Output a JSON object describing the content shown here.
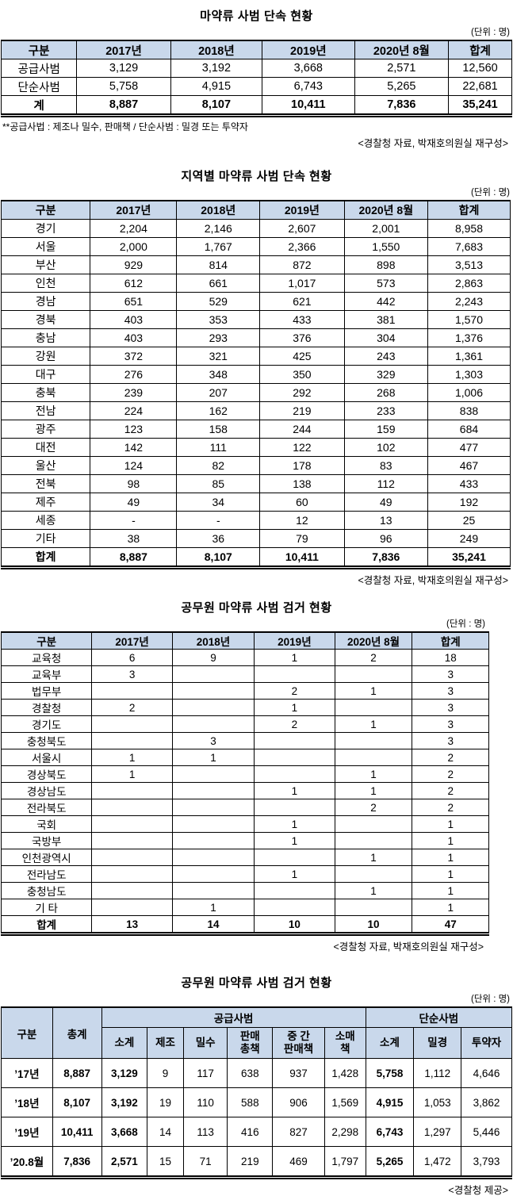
{
  "table1": {
    "title": "마약류 사범 단속 현황",
    "unit": "(단위 : 명)",
    "headers": [
      "구분",
      "2017년",
      "2018년",
      "2019년",
      "2020년  8월",
      "합계"
    ],
    "rows": [
      {
        "label": "공급사범",
        "values": [
          "3,129",
          "3,192",
          "3,668",
          "2,571",
          "12,560"
        ]
      },
      {
        "label": "단순사범",
        "values": [
          "5,758",
          "4,915",
          "6,743",
          "5,265",
          "22,681"
        ]
      }
    ],
    "total": {
      "label": "계",
      "values": [
        "8,887",
        "8,107",
        "10,411",
        "7,836",
        "35,241"
      ]
    },
    "footnote": "**공급사법 : 제조나 밀수, 판매책 / 단순사범 : 밀경 또는 투약자",
    "source": "<경찰청 자료, 박재호의원실 재구성>"
  },
  "table2": {
    "title": "지역별 마약류 사범 단속 현황",
    "unit": "(단위 : 명)",
    "headers": [
      "구분",
      "2017년",
      "2018년",
      "2019년",
      "2020년  8월",
      "합계"
    ],
    "rows": [
      {
        "label": "경기",
        "values": [
          "2,204",
          "2,146",
          "2,607",
          "2,001",
          "8,958"
        ]
      },
      {
        "label": "서울",
        "values": [
          "2,000",
          "1,767",
          "2,366",
          "1,550",
          "7,683"
        ]
      },
      {
        "label": "부산",
        "values": [
          "929",
          "814",
          "872",
          "898",
          "3,513"
        ]
      },
      {
        "label": "인천",
        "values": [
          "612",
          "661",
          "1,017",
          "573",
          "2,863"
        ]
      },
      {
        "label": "경남",
        "values": [
          "651",
          "529",
          "621",
          "442",
          "2,243"
        ]
      },
      {
        "label": "경북",
        "values": [
          "403",
          "353",
          "433",
          "381",
          "1,570"
        ]
      },
      {
        "label": "충남",
        "values": [
          "403",
          "293",
          "376",
          "304",
          "1,376"
        ]
      },
      {
        "label": "강원",
        "values": [
          "372",
          "321",
          "425",
          "243",
          "1,361"
        ]
      },
      {
        "label": "대구",
        "values": [
          "276",
          "348",
          "350",
          "329",
          "1,303"
        ]
      },
      {
        "label": "충북",
        "values": [
          "239",
          "207",
          "292",
          "268",
          "1,006"
        ]
      },
      {
        "label": "전남",
        "values": [
          "224",
          "162",
          "219",
          "233",
          "838"
        ]
      },
      {
        "label": "광주",
        "values": [
          "123",
          "158",
          "244",
          "159",
          "684"
        ]
      },
      {
        "label": "대전",
        "values": [
          "142",
          "111",
          "122",
          "102",
          "477"
        ]
      },
      {
        "label": "울산",
        "values": [
          "124",
          "82",
          "178",
          "83",
          "467"
        ]
      },
      {
        "label": "전북",
        "values": [
          "98",
          "85",
          "138",
          "112",
          "433"
        ]
      },
      {
        "label": "제주",
        "values": [
          "49",
          "34",
          "60",
          "49",
          "192"
        ]
      },
      {
        "label": "세종",
        "values": [
          "-",
          "-",
          "12",
          "13",
          "25"
        ]
      },
      {
        "label": "기타",
        "values": [
          "38",
          "36",
          "79",
          "96",
          "249"
        ]
      }
    ],
    "total": {
      "label": "합계",
      "values": [
        "8,887",
        "8,107",
        "10,411",
        "7,836",
        "35,241"
      ]
    },
    "source": "<경찰청 자료, 박재호의원실 재구성>"
  },
  "table3": {
    "title": "공무원 마약류 사범 검거 현황",
    "unit": "(단위 : 명)",
    "headers": [
      "구분",
      "2017년",
      "2018년",
      "2019년",
      "2020년  8월",
      "합계"
    ],
    "rows": [
      {
        "label": "교육청",
        "values": [
          "6",
          "9",
          "1",
          "2",
          "18"
        ]
      },
      {
        "label": "교육부",
        "values": [
          "3",
          "",
          "",
          "",
          "3"
        ]
      },
      {
        "label": "법무부",
        "values": [
          "",
          "",
          "2",
          "1",
          "3"
        ]
      },
      {
        "label": "경찰청",
        "values": [
          "2",
          "",
          "1",
          "",
          "3"
        ]
      },
      {
        "label": "경기도",
        "values": [
          "",
          "",
          "2",
          "1",
          "3"
        ]
      },
      {
        "label": "충청북도",
        "values": [
          "",
          "3",
          "",
          "",
          "3"
        ]
      },
      {
        "label": "서울시",
        "values": [
          "1",
          "1",
          "",
          "",
          "2"
        ]
      },
      {
        "label": "경상북도",
        "values": [
          "1",
          "",
          "",
          "1",
          "2"
        ]
      },
      {
        "label": "경상남도",
        "values": [
          "",
          "",
          "1",
          "1",
          "2"
        ]
      },
      {
        "label": "전라북도",
        "values": [
          "",
          "",
          "",
          "2",
          "2"
        ]
      },
      {
        "label": "국회",
        "values": [
          "",
          "",
          "1",
          "",
          "1"
        ]
      },
      {
        "label": "국방부",
        "values": [
          "",
          "",
          "1",
          "",
          "1"
        ]
      },
      {
        "label": "인천광역시",
        "values": [
          "",
          "",
          "",
          "1",
          "1"
        ]
      },
      {
        "label": "전라남도",
        "values": [
          "",
          "",
          "1",
          "",
          "1"
        ]
      },
      {
        "label": "충청남도",
        "values": [
          "",
          "",
          "",
          "1",
          "1"
        ]
      },
      {
        "label": "기 타",
        "values": [
          "",
          "1",
          "",
          "",
          "1"
        ]
      }
    ],
    "total": {
      "label": "합계",
      "values": [
        "13",
        "14",
        "10",
        "10",
        "47"
      ]
    },
    "source": "<경찰청 자료, 박재호의원실 재구성>"
  },
  "table4": {
    "title": "공무원 마약류 사범 검거 현황",
    "unit": "(단위 : 명)",
    "header": {
      "gubun": "구분",
      "grand_total": "총계",
      "supply_group": "공급사범",
      "simple_group": "단순사범",
      "sub": [
        "소계",
        "제조",
        "밀수",
        "판매\n총책",
        "중 간\n판매책",
        "소매\n책",
        "소계",
        "밀경",
        "투약자"
      ]
    },
    "rows": [
      {
        "label": "’17년",
        "values": [
          "8,887",
          "3,129",
          "9",
          "117",
          "638",
          "937",
          "1,428",
          "5,758",
          "1,112",
          "4,646"
        ]
      },
      {
        "label": "’18년",
        "values": [
          "8,107",
          "3,192",
          "19",
          "110",
          "588",
          "906",
          "1,569",
          "4,915",
          "1,053",
          "3,862"
        ]
      },
      {
        "label": "’19년",
        "values": [
          "10,411",
          "3,668",
          "14",
          "113",
          "416",
          "827",
          "2,298",
          "6,743",
          "1,297",
          "5,446"
        ]
      },
      {
        "label": "’20.8월",
        "values": [
          "7,836",
          "2,571",
          "15",
          "71",
          "219",
          "469",
          "1,797",
          "5,265",
          "1,472",
          "3,793"
        ]
      }
    ],
    "source": "<경찰청 제공>"
  }
}
